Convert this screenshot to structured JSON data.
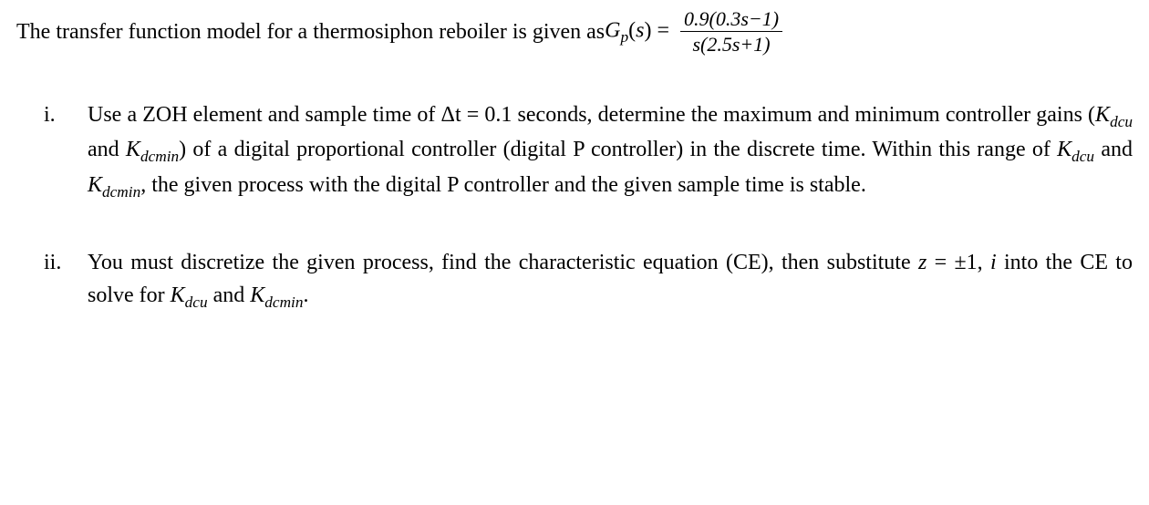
{
  "intro": {
    "lead": "The transfer function model for a thermosiphon reboiler is given as ",
    "lhs_var": "G",
    "lhs_sub": "p",
    "lhs_arg": "s",
    "eq": " = ",
    "numerator": "0.9(0.3s−1)",
    "denominator": "s(2.5s+1)"
  },
  "items": [
    {
      "marker": "i.",
      "seg1": "Use a ZOH element and sample time of ",
      "dt_sym": "Δt",
      "dt_eq": " = 0.1 ",
      "seg2": "seconds, determine the maximum and minimum controller gains (",
      "k1_base": "K",
      "k1_sub": "dcu",
      "and1": " and ",
      "k2_base": "K",
      "k2_sub": "dcmin",
      "seg3": ") of a digital proportional controller (digital P controller) in the discrete time. Within this range of ",
      "k3_base": "K",
      "k3_sub": "dcu",
      "and2": " and ",
      "k4_base": "K",
      "k4_sub": "dcmin",
      "seg4": ", the given process with the digital P controller and the given sample time is stable."
    },
    {
      "marker": "ii.",
      "seg1": "You must discretize the given process, find the characteristic equation (CE), then substitute ",
      "z_sym": "z",
      "z_eq": " = ±1, ",
      "i_sym": "i",
      "seg2": " into the CE to solve for ",
      "k1_base": "K",
      "k1_sub": "dcu",
      "and1": " and ",
      "k2_base": "K",
      "k2_sub": "dcmin",
      "seg3": "."
    }
  ]
}
